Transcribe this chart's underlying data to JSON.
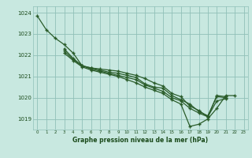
{
  "background_color": "#c8e8e0",
  "grid_color": "#90c0b8",
  "line_color": "#2a5c2a",
  "xlabel": "Graphe pression niveau de la mer (hPa)",
  "xlabel_color": "#1a4a1a",
  "ylim_min": 1018.5,
  "ylim_max": 1024.3,
  "yticks": [
    1019,
    1020,
    1021,
    1022,
    1023,
    1024
  ],
  "xticks": [
    0,
    1,
    2,
    3,
    4,
    5,
    6,
    7,
    8,
    9,
    10,
    11,
    12,
    13,
    14,
    15,
    16,
    17,
    18,
    19,
    20,
    21,
    22,
    23
  ],
  "series": [
    {
      "x": [
        0,
        1,
        2,
        3,
        4,
        5,
        6,
        7,
        8,
        9,
        10,
        11,
        12,
        13,
        14,
        15,
        16,
        17,
        18,
        19,
        20,
        21
      ],
      "y": [
        1023.85,
        1023.2,
        1022.8,
        1022.5,
        1022.1,
        1021.5,
        1021.4,
        1021.35,
        1021.3,
        1021.25,
        1021.15,
        1021.05,
        1020.9,
        1020.7,
        1020.55,
        1020.2,
        1020.05,
        1019.6,
        1019.4,
        1019.1,
        1020.1,
        1020.05
      ]
    },
    {
      "x": [
        3,
        4,
        5,
        6,
        7,
        8,
        9,
        10,
        11,
        12,
        13,
        14,
        15,
        16,
        17,
        18,
        19,
        20,
        21
      ],
      "y": [
        1022.3,
        1021.85,
        1021.5,
        1021.4,
        1021.3,
        1021.2,
        1021.15,
        1021.05,
        1020.95,
        1020.65,
        1020.5,
        1020.45,
        1020.1,
        1019.9,
        1019.7,
        1019.35,
        1019.15,
        1020.05,
        1020.0
      ]
    },
    {
      "x": [
        3,
        4,
        5,
        6,
        7,
        8,
        9,
        10,
        11,
        12,
        13,
        14,
        15,
        16,
        17,
        18,
        19,
        20,
        21
      ],
      "y": [
        1022.2,
        1021.8,
        1021.5,
        1021.35,
        1021.25,
        1021.15,
        1021.05,
        1020.95,
        1020.85,
        1020.6,
        1020.45,
        1020.3,
        1020.0,
        1019.85,
        1019.5,
        1019.28,
        1019.1,
        1019.85,
        1019.95
      ]
    },
    {
      "x": [
        3,
        4,
        5,
        6,
        7,
        8,
        9,
        10,
        11,
        12,
        13,
        14,
        15,
        16,
        17,
        18,
        19,
        20,
        21,
        22
      ],
      "y": [
        1022.1,
        1021.75,
        1021.45,
        1021.3,
        1021.2,
        1021.1,
        1021.0,
        1020.85,
        1020.7,
        1020.5,
        1020.35,
        1020.2,
        1019.9,
        1019.7,
        1018.65,
        1018.75,
        1019.0,
        1019.5,
        1020.1,
        1020.1
      ]
    }
  ]
}
